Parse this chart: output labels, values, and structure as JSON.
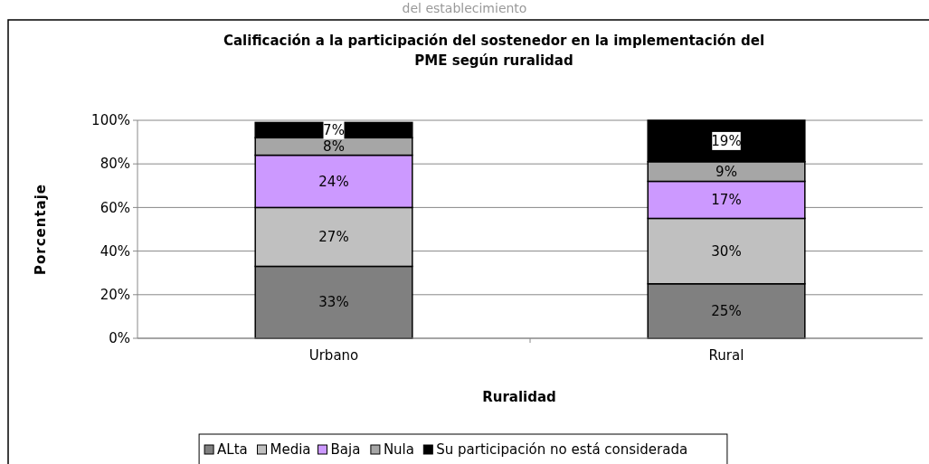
{
  "chart_data": {
    "type": "bar",
    "stacked": true,
    "title": "Calificación a la participación del sostenedor en la implementación del\nPME según ruralidad",
    "annotations": [
      "del establecimiento"
    ],
    "xlabel": "Ruralidad",
    "ylabel": "Porcentaje",
    "categories": [
      "Urbano",
      "Rural"
    ],
    "series": [
      {
        "name": "ALta",
        "color": "#808080",
        "values": [
          33,
          25
        ],
        "value_labels": [
          "33%",
          "25%"
        ]
      },
      {
        "name": "Media",
        "color": "#c0c0c0",
        "values": [
          27,
          30
        ],
        "value_labels": [
          "27%",
          "30%"
        ]
      },
      {
        "name": "Baja",
        "color": "#cc99ff",
        "values": [
          24,
          17
        ],
        "value_labels": [
          "24%",
          "17%"
        ]
      },
      {
        "name": "Nula",
        "color": "#a6a6a6",
        "values": [
          8,
          9
        ],
        "value_labels": [
          "8%",
          "9%"
        ]
      },
      {
        "name": "Su participación no está considerada",
        "color": "#000000",
        "values": [
          7,
          19
        ],
        "value_labels": [
          "7%",
          "19%"
        ]
      }
    ],
    "ylim": [
      0,
      100
    ],
    "yticks": [
      {
        "value": 0,
        "label": "0%"
      },
      {
        "value": 20,
        "label": "20%"
      },
      {
        "value": 40,
        "label": "40%"
      },
      {
        "value": 60,
        "label": "60%"
      },
      {
        "value": 80,
        "label": "80%"
      },
      {
        "value": 100,
        "label": "100%"
      }
    ],
    "grid": "y",
    "legend": "bottom"
  }
}
